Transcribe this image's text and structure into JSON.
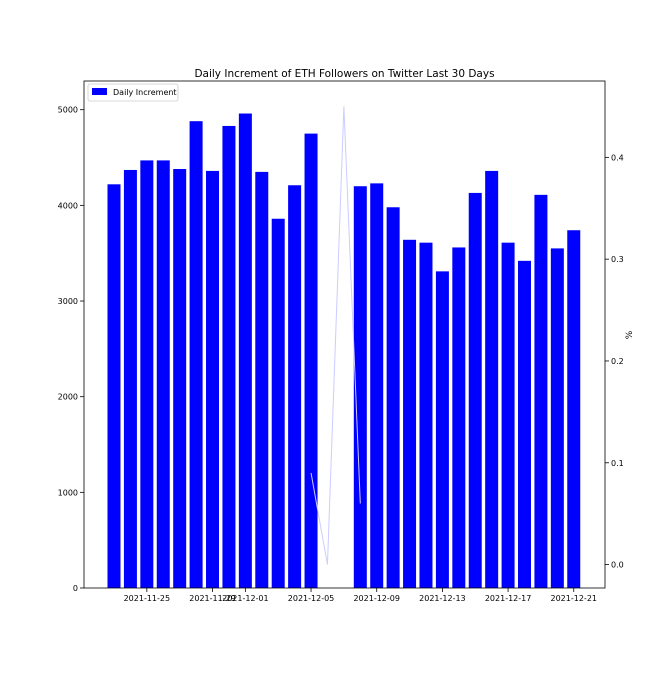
{
  "chart_data": {
    "type": "bar",
    "title": "Daily Increment of ETH Followers on Twitter Last 30 Days",
    "xlabel": "",
    "ylabel": "",
    "y2label": "%",
    "legend": {
      "placement": "top-left",
      "entries": [
        "Daily Increment"
      ]
    },
    "grid": false,
    "colors": {
      "bars": "#0000ff",
      "line": "#ccccff"
    },
    "ylim": [
      0,
      5300
    ],
    "y_ticks": [
      0,
      1000,
      2000,
      3000,
      4000,
      5000
    ],
    "y2lim": [
      -0.023,
      0.475
    ],
    "y2_ticks": [
      "0.0",
      "0.1",
      "0.2",
      "0.3",
      "0.4"
    ],
    "x_tick_labels": [
      {
        "date": "2021-11-25",
        "label": "2021-11-25"
      },
      {
        "date": "2021-11-29",
        "label": "2021-11-29"
      },
      {
        "date": "2021-12-01",
        "label": "2021-12-01"
      },
      {
        "date": "2021-12-05",
        "label": "2021-12-05"
      },
      {
        "date": "2021-12-09",
        "label": "2021-12-09"
      },
      {
        "date": "2021-12-13",
        "label": "2021-12-13"
      },
      {
        "date": "2021-12-17",
        "label": "2021-12-17"
      },
      {
        "date": "2021-12-21",
        "label": "2021-12-21"
      }
    ],
    "series": [
      {
        "name": "Daily Increment",
        "type": "bar",
        "x": [
          "2021-11-23",
          "2021-11-24",
          "2021-11-25",
          "2021-11-26",
          "2021-11-27",
          "2021-11-28",
          "2021-11-29",
          "2021-11-30",
          "2021-12-01",
          "2021-12-02",
          "2021-12-03",
          "2021-12-04",
          "2021-12-05",
          "2021-12-08",
          "2021-12-09",
          "2021-12-10",
          "2021-12-11",
          "2021-12-12",
          "2021-12-13",
          "2021-12-14",
          "2021-12-15",
          "2021-12-16",
          "2021-12-17",
          "2021-12-18",
          "2021-12-19",
          "2021-12-20",
          "2021-12-21"
        ],
        "values": [
          4220,
          4370,
          4470,
          4470,
          4380,
          4880,
          4360,
          4830,
          4960,
          4350,
          3860,
          4210,
          4750,
          4200,
          4230,
          3980,
          3640,
          3610,
          3310,
          3560,
          4130,
          4360,
          3610,
          3420,
          4110,
          3550,
          3740
        ]
      },
      {
        "type": "line",
        "axis": "right",
        "x": [
          "2021-12-05",
          "2021-12-06",
          "2021-12-07",
          "2021-12-08"
        ],
        "values": [
          0.09,
          0.0,
          0.45,
          0.06
        ]
      }
    ]
  }
}
